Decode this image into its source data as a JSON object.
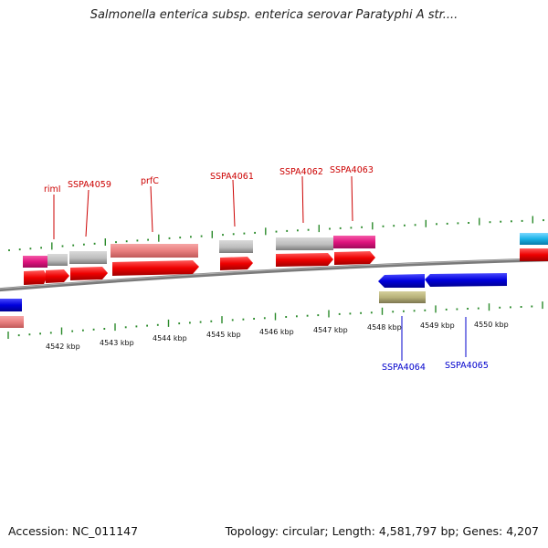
{
  "title": "Salmonella enterica subsp. enterica serovar Paratyphi A str....",
  "footer": {
    "accession": "Accession: NC_011147",
    "summary": "Topology: circular; Length: 4,581,797 bp; Genes: 4,207"
  },
  "colors": {
    "backbone": "#808080",
    "forward_cds": "#ff0000",
    "reverse_cds": "#0000e0",
    "rna_pink": "#e97f7f",
    "gene_gray": "#bdbdbd",
    "magenta": "#e0147e",
    "olive": "#b8b27a",
    "cyan": "#1ab3e8",
    "tick_green": "#2a8a2a",
    "label_red": "#cc0000",
    "label_blue": "#0000cc"
  },
  "axis": {
    "unit": "kbp",
    "ticks": [
      {
        "label": "4542 kbp"
      },
      {
        "label": "4543 kbp"
      },
      {
        "label": "4544 kbp"
      },
      {
        "label": "4545 kbp"
      },
      {
        "label": "4546 kbp"
      },
      {
        "label": "4547 kbp"
      },
      {
        "label": "4548 kbp"
      },
      {
        "label": "4549 kbp"
      },
      {
        "label": "4550 kbp"
      }
    ]
  },
  "genes": {
    "top": [
      {
        "label": "rimI"
      },
      {
        "label": "SSPA4059"
      },
      {
        "label": "prfC"
      },
      {
        "label": "SSPA4061"
      },
      {
        "label": "SSPA4062"
      },
      {
        "label": "SSPA4063"
      }
    ],
    "bottom": [
      {
        "label": "SSPA4064"
      },
      {
        "label": "SSPA4065"
      }
    ]
  }
}
